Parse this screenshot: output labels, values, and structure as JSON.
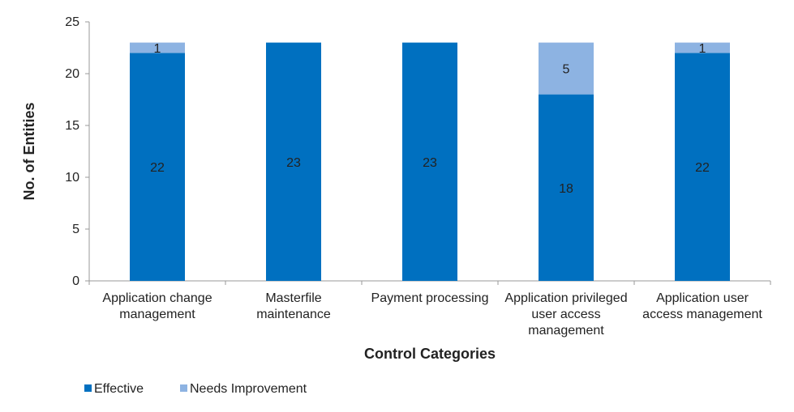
{
  "chart_data": {
    "type": "bar",
    "stacked": true,
    "categories": [
      [
        "Application change",
        "management"
      ],
      [
        "Masterfile",
        "maintenance"
      ],
      [
        "Payment processing"
      ],
      [
        "Application privileged",
        "user access",
        "management"
      ],
      [
        "Application user",
        "access management"
      ]
    ],
    "series": [
      {
        "name": "Effective",
        "color": "#0070c0",
        "values": [
          22,
          23,
          23,
          18,
          22
        ]
      },
      {
        "name": "Needs Improvement",
        "color": "#8db3e2",
        "values": [
          1,
          0,
          0,
          5,
          1
        ]
      }
    ],
    "xlabel": "Control Categories",
    "ylabel": "No. of Entities",
    "ylim": [
      0,
      25
    ],
    "yticks": [
      0,
      5,
      10,
      15,
      20,
      25
    ],
    "grid": false,
    "legend_position": "bottom-left"
  }
}
